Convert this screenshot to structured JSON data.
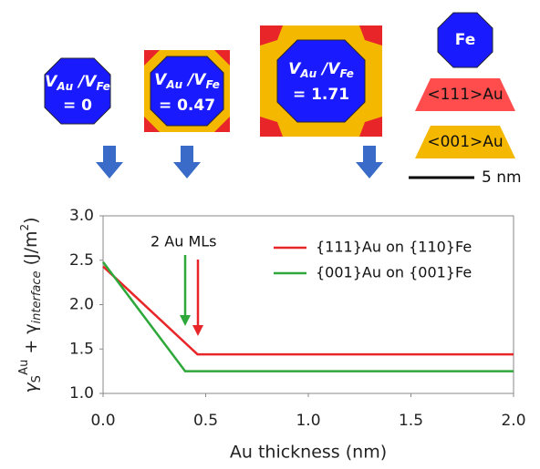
{
  "figure": {
    "panels": [
      {
        "var": "V",
        "sub_num": "Au",
        "slash": " /V",
        "sub_den": "Fe",
        "value": "= 0"
      },
      {
        "var": "V",
        "sub_num": "Au",
        "slash": " /V",
        "sub_den": "Fe",
        "value": "= 0.47"
      },
      {
        "var": "V",
        "sub_num": "Au",
        "slash": " /V",
        "sub_den": "Fe",
        "value": "= 1.71"
      }
    ],
    "key": {
      "fe": "Fe",
      "au111": "<111>Au",
      "au001": "<001>Au",
      "scale": "5 nm"
    }
  },
  "chart_data": {
    "type": "line",
    "y_label": {
      "gamma": "γ",
      "sub": "S",
      "sup": "Au",
      "plus": " + γ",
      "sub2": "interface",
      "unit": " (J/m",
      "unit_sup": "2",
      "close": ")"
    },
    "x_label": "Au thickness (nm)",
    "annotation": "2 Au MLs",
    "series": [
      {
        "name": "{111}Au on {110}Fe",
        "color": "#e8262a",
        "x": [
          0,
          0.46,
          2.0
        ],
        "values": [
          2.43,
          1.44,
          1.44
        ]
      },
      {
        "name": "{001}Au on {001}Fe",
        "color": "#2ea83a",
        "x": [
          0,
          0.4,
          2.0
        ],
        "values": [
          2.48,
          1.25,
          1.25
        ]
      }
    ],
    "xlim": [
      0,
      2
    ],
    "ylim": [
      1,
      3
    ],
    "xticks": [
      {
        "value": 0,
        "label": "0.0"
      },
      {
        "value": 0.5,
        "label": "0.5"
      },
      {
        "value": 1,
        "label": "1.0"
      },
      {
        "value": 1.5,
        "label": "1.5"
      },
      {
        "value": 2,
        "label": "2.0"
      }
    ],
    "yticks": [
      {
        "value": 1,
        "label": "1.0"
      },
      {
        "value": 1.5,
        "label": "1.5"
      },
      {
        "value": 2,
        "label": "2.0"
      },
      {
        "value": 2.5,
        "label": "2.5"
      },
      {
        "value": 3,
        "label": "3.0"
      }
    ]
  }
}
